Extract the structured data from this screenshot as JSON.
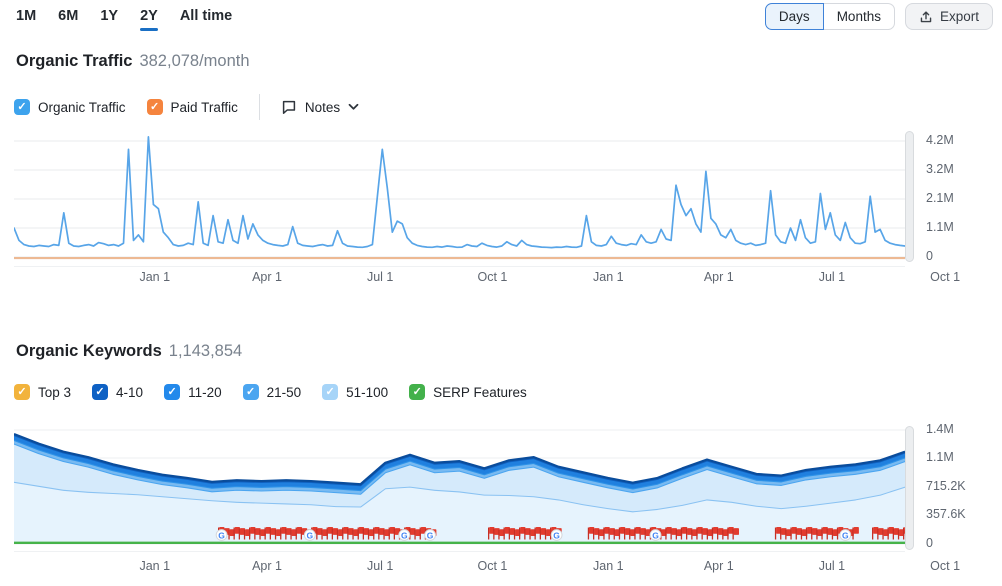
{
  "header": {
    "tabs": [
      {
        "label": "1M",
        "active": false
      },
      {
        "label": "6M",
        "active": false
      },
      {
        "label": "1Y",
        "active": false
      },
      {
        "label": "2Y",
        "active": true
      },
      {
        "label": "All time",
        "active": false
      }
    ],
    "granularity": {
      "options": [
        "Days",
        "Months"
      ],
      "selected": "Days"
    },
    "export_label": "Export"
  },
  "traffic": {
    "title": "Organic Traffic",
    "value": "382,078/month",
    "legend": [
      {
        "label": "Organic Traffic",
        "color": "#3DA3ED",
        "checked": true
      },
      {
        "label": "Paid Traffic",
        "color": "#F5843E",
        "checked": true
      }
    ],
    "notes_label": "Notes"
  },
  "keywords": {
    "title": "Organic Keywords",
    "value": "1,143,854",
    "legend": [
      {
        "label": "Top 3",
        "color": "#F2B33C",
        "checked": true
      },
      {
        "label": "4-10",
        "color": "#0E61C4",
        "checked": true
      },
      {
        "label": "11-20",
        "color": "#2389EB",
        "checked": true
      },
      {
        "label": "21-50",
        "color": "#4BA5F0",
        "checked": true
      },
      {
        "label": "51-100",
        "color": "#A6D4F8",
        "checked": true
      },
      {
        "label": "SERP Features",
        "color": "#43B14B",
        "checked": true
      }
    ]
  },
  "chart_data": [
    {
      "type": "line",
      "title": "Organic Traffic (daily, 2 years)",
      "unit": "millions of visits",
      "ylim": [
        0,
        4.35
      ],
      "y_tick_labels": [
        "4.2M",
        "3.2M",
        "2.1M",
        "1.1M",
        "0"
      ],
      "x_tick_labels": [
        "Jan 1",
        "Apr 1",
        "Jul 1",
        "Oct 1",
        "Jan 1",
        "Apr 1",
        "Jul 1",
        "Oct 1"
      ],
      "x_tick_fracs": [
        0.158,
        0.284,
        0.411,
        0.537,
        0.667,
        0.791,
        0.918,
        1.045
      ],
      "grid": true,
      "series": [
        {
          "name": "Organic Traffic",
          "color": "#58A5E8",
          "values": [
            1.05,
            0.6,
            0.45,
            0.4,
            0.38,
            0.42,
            0.4,
            0.38,
            0.45,
            0.42,
            1.6,
            0.5,
            0.4,
            0.38,
            0.42,
            0.45,
            0.4,
            0.52,
            0.48,
            0.42,
            0.45,
            0.4,
            0.5,
            3.9,
            0.6,
            0.8,
            0.55,
            4.35,
            1.9,
            1.75,
            0.9,
            0.7,
            0.45,
            0.4,
            0.42,
            0.5,
            0.45,
            2.0,
            0.5,
            0.42,
            1.5,
            0.55,
            0.5,
            1.35,
            0.6,
            0.5,
            1.5,
            0.65,
            1.2,
            0.8,
            0.6,
            0.5,
            0.45,
            0.42,
            0.4,
            0.45,
            1.1,
            0.5,
            0.42,
            0.4,
            0.38,
            0.42,
            0.45,
            0.4,
            0.42,
            0.95,
            0.5,
            0.4,
            0.38,
            0.36,
            0.35,
            0.38,
            0.45,
            2.2,
            3.9,
            2.5,
            0.9,
            1.3,
            1.2,
            0.7,
            0.5,
            0.42,
            0.38,
            0.36,
            0.35,
            0.38,
            0.36,
            0.4,
            0.38,
            0.35,
            0.36,
            0.45,
            0.4,
            0.38,
            0.5,
            0.42,
            0.38,
            0.36,
            0.4,
            0.55,
            0.45,
            0.4,
            0.6,
            0.45,
            0.4,
            0.38,
            0.36,
            0.35,
            0.34,
            0.36,
            0.35,
            0.38,
            0.36,
            0.35,
            0.4,
            1.5,
            0.55,
            0.42,
            0.4,
            0.45,
            0.75,
            0.5,
            0.45,
            0.42,
            0.48,
            0.45,
            0.8,
            0.55,
            0.5,
            0.55,
            1.0,
            0.65,
            0.6,
            2.6,
            1.9,
            1.5,
            1.75,
            1.2,
            0.9,
            3.1,
            1.4,
            1.2,
            0.8,
            0.7,
            1.0,
            0.6,
            0.5,
            0.45,
            0.5,
            0.42,
            0.45,
            0.5,
            2.4,
            0.8,
            0.55,
            0.5,
            1.05,
            0.6,
            1.35,
            0.7,
            0.5,
            0.55,
            2.3,
            1.0,
            1.6,
            0.8,
            0.6,
            1.25,
            0.7,
            0.5,
            0.48,
            0.55,
            2.2,
            0.9,
            1.0,
            0.6,
            0.5,
            0.45,
            0.42,
            0.4
          ]
        },
        {
          "name": "Paid Traffic",
          "color": "#EDB993",
          "values_constant": 0.02
        }
      ]
    },
    {
      "type": "stacked_area",
      "title": "Organic Keywords by position (2 years)",
      "unit": "millions of keywords",
      "ylim": [
        0,
        1.43
      ],
      "y_tick_labels": [
        "1.4M",
        "1.1M",
        "715.2K",
        "357.6K",
        "0"
      ],
      "x_tick_labels": [
        "Jan 1",
        "Apr 1",
        "Jul 1",
        "Oct 1",
        "Jan 1",
        "Apr 1",
        "Jul 1",
        "Oct 1"
      ],
      "x_tick_fracs": [
        0.158,
        0.284,
        0.411,
        0.537,
        0.667,
        0.791,
        0.918,
        1.045
      ],
      "grid": true,
      "series_bottom_to_top": [
        {
          "name": "51-100",
          "fill": "#E6F3FD",
          "stroke": "#8AC2F2",
          "values": [
            0.78,
            0.73,
            0.68,
            0.655,
            0.64,
            0.625,
            0.6,
            0.575,
            0.55,
            0.53,
            0.52,
            0.51,
            0.5,
            0.475,
            0.47,
            0.7,
            0.72,
            0.68,
            0.66,
            0.62,
            0.615,
            0.6,
            0.56,
            0.5,
            0.45,
            0.41,
            0.44,
            0.49,
            0.56,
            0.53,
            0.48,
            0.45,
            0.48,
            0.52,
            0.56,
            0.62,
            0.72
          ]
        },
        {
          "name": "21-50",
          "fill": "#D5EAFB",
          "stroke": "#4BA5F0",
          "values": [
            0.481,
            0.411,
            0.361,
            0.316,
            0.241,
            0.186,
            0.151,
            0.136,
            0.111,
            0.151,
            0.151,
            0.171,
            0.171,
            0.176,
            0.161,
            0.201,
            0.281,
            0.221,
            0.261,
            0.211,
            0.316,
            0.371,
            0.291,
            0.281,
            0.261,
            0.241,
            0.271,
            0.341,
            0.381,
            0.321,
            0.281,
            0.291,
            0.331,
            0.331,
            0.321,
            0.311,
            0.321
          ]
        },
        {
          "name": "11-20",
          "fill": "#79BAF1",
          "stroke": "#2E93E8",
          "values_constant": 0.045
        },
        {
          "name": "4-10",
          "fill": "#2080DF",
          "stroke": "#0F5FBE",
          "values_constant": 0.062
        },
        {
          "name": "Top 3",
          "fill": "#0D55A8",
          "stroke": "#0A4C9B",
          "values_constant": 0.012
        }
      ],
      "serp_features": {
        "name": "SERP Features",
        "color": "#46B34A",
        "values_constant": 0.015
      },
      "annotations": {
        "flag_color": "#E23B2E",
        "clusters": [
          [
            0.229,
            0.47
          ],
          [
            0.532,
            0.613
          ],
          [
            0.644,
            0.811
          ],
          [
            0.854,
            0.946
          ],
          [
            0.963,
            1.0
          ]
        ],
        "google_icon_fracs": [
          0.233,
          0.332,
          0.438,
          0.467,
          0.609,
          0.72,
          0.933
        ]
      }
    }
  ]
}
